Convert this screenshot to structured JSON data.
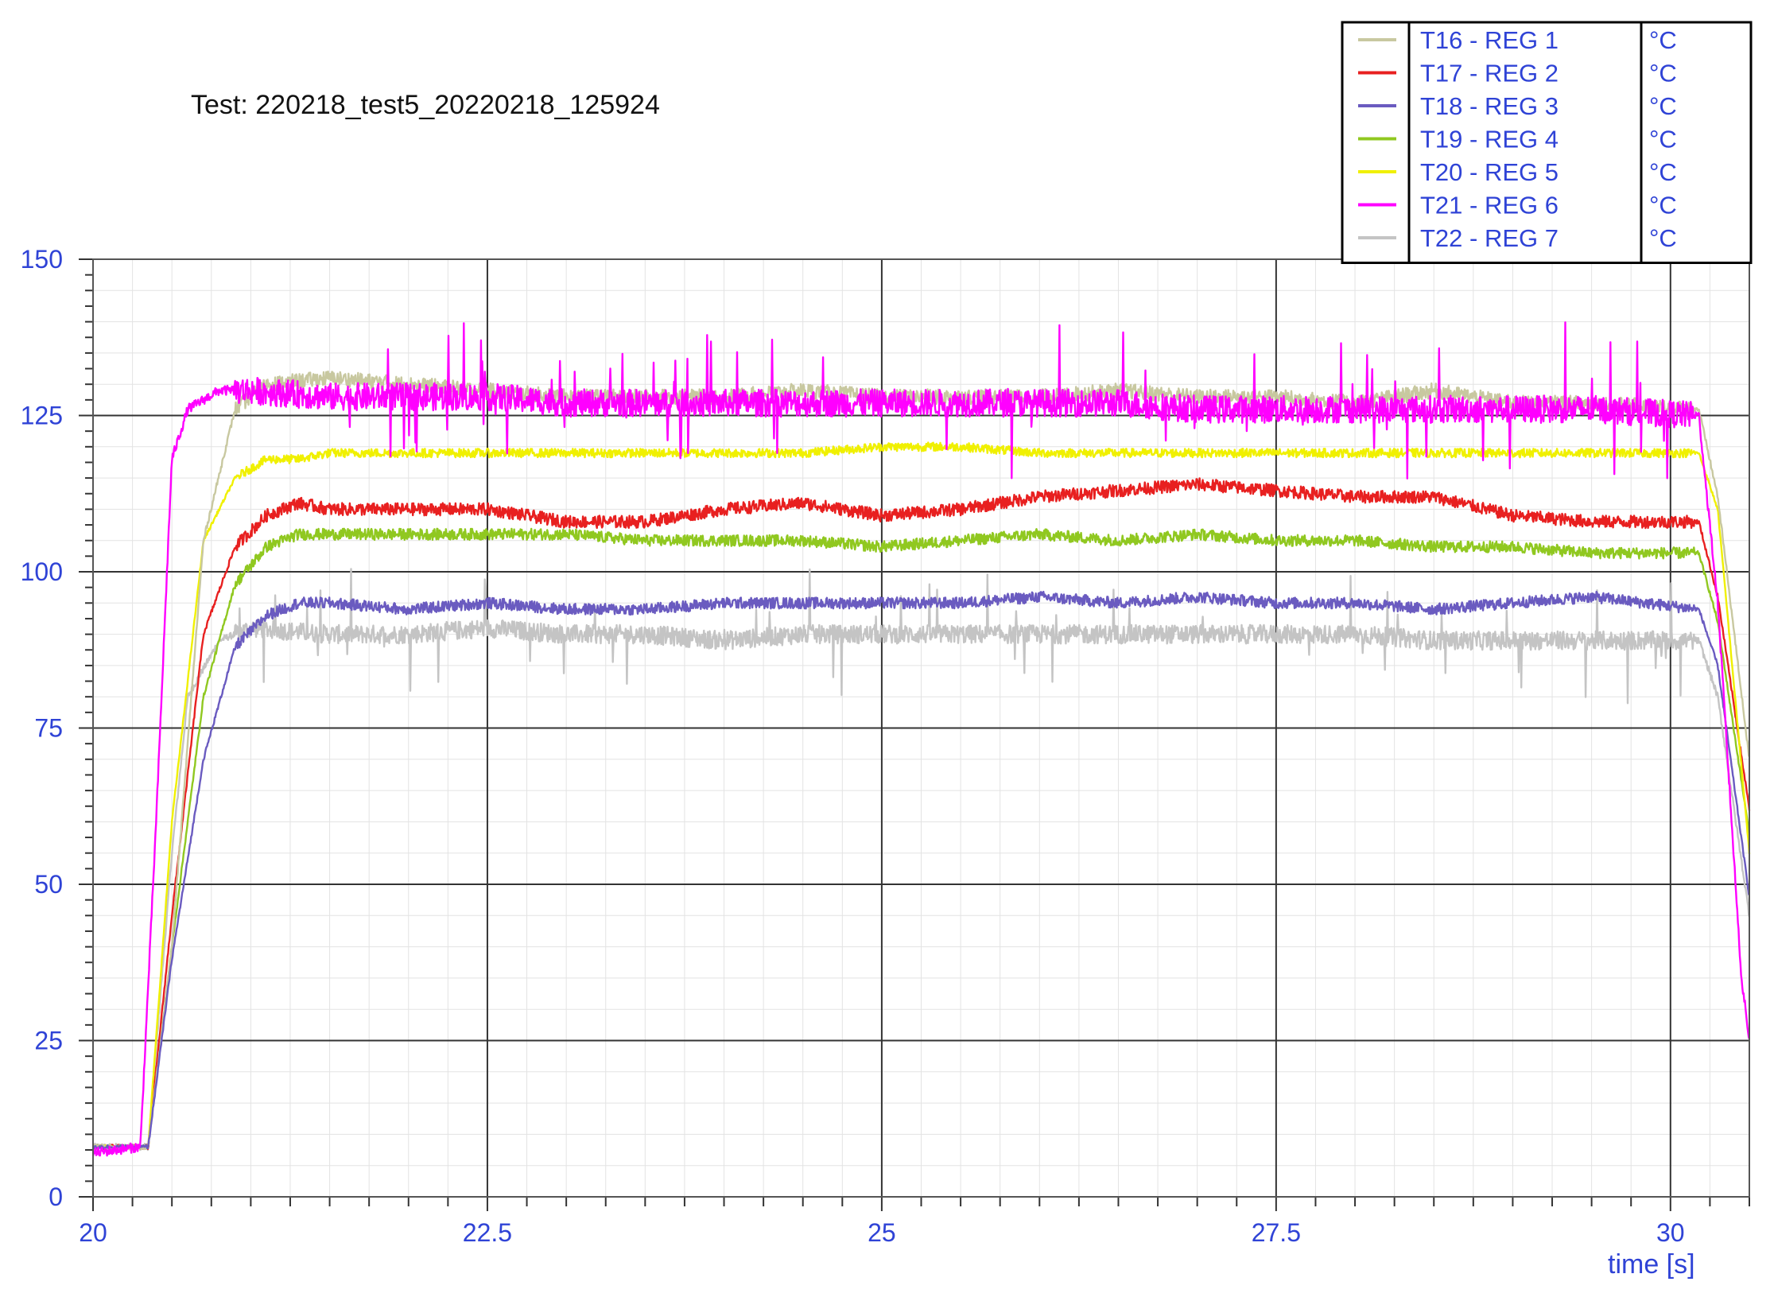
{
  "test_label": "Test:  220218_test5_20220218_125924",
  "chart_data": {
    "type": "line",
    "title": "Test:  220218_test5_20220218_125924",
    "xlabel": "time [s]",
    "ylabel": "",
    "xlim": [
      20,
      30.5
    ],
    "ylim": [
      0,
      150
    ],
    "x_ticks": [
      "20",
      "22.5",
      "25",
      "27.5",
      "30"
    ],
    "x_tick_values": [
      20,
      22.5,
      25,
      27.5,
      30
    ],
    "y_ticks": [
      "0",
      "25",
      "50",
      "75",
      "100",
      "125",
      "150"
    ],
    "y_tick_values": [
      0,
      25,
      50,
      75,
      100,
      125,
      150
    ],
    "grid": true,
    "legend_position": "top-right",
    "series": [
      {
        "name": "T16 - REG 1",
        "unit": "°C",
        "color": "#c8c8a0",
        "noise": 1.2,
        "x": [
          20,
          20.35,
          20.5,
          20.7,
          20.9,
          21.1,
          21.5,
          22,
          22.5,
          23,
          23.5,
          24,
          24.5,
          25,
          25.5,
          26,
          26.5,
          27,
          27.5,
          28,
          28.5,
          29,
          29.5,
          30.18,
          30.3,
          30.5
        ],
        "y": [
          8,
          8,
          40,
          105,
          126,
          130,
          131,
          130,
          129,
          128,
          128,
          128,
          129,
          128,
          128,
          128,
          129,
          128,
          128,
          127,
          129,
          127,
          127,
          126,
          112,
          70
        ]
      },
      {
        "name": "T17 - REG 2",
        "unit": "°C",
        "color": "#e82020",
        "noise": 1.0,
        "x": [
          20,
          20.35,
          20.5,
          20.7,
          20.9,
          21.1,
          21.3,
          21.5,
          22,
          22.5,
          23,
          23.5,
          24,
          24.5,
          25,
          25.5,
          26,
          26.5,
          27,
          27.5,
          28,
          28.5,
          29,
          29.5,
          30.18,
          30.3,
          30.5
        ],
        "y": [
          8,
          8,
          45,
          90,
          104,
          109,
          111,
          110,
          110,
          110,
          108,
          108,
          110,
          111,
          109,
          110,
          112,
          113,
          114,
          113,
          112,
          112,
          109,
          108,
          108,
          96,
          62
        ]
      },
      {
        "name": "T18 - REG 3",
        "unit": "°C",
        "color": "#6a5bc0",
        "noise": 0.9,
        "x": [
          20,
          20.35,
          20.5,
          20.7,
          20.9,
          21.1,
          21.3,
          21.5,
          22,
          22.5,
          23,
          23.5,
          24,
          24.5,
          25,
          25.5,
          26,
          26.5,
          27,
          27.5,
          28,
          28.5,
          29,
          29.5,
          30.18,
          30.3,
          30.5
        ],
        "y": [
          8,
          8,
          38,
          70,
          88,
          93,
          95,
          95,
          94,
          95,
          94,
          94,
          95,
          95,
          95,
          95,
          96,
          95,
          96,
          95,
          95,
          94,
          95,
          96,
          94,
          85,
          48
        ]
      },
      {
        "name": "T19 - REG 4",
        "unit": "°C",
        "color": "#90c820",
        "noise": 0.9,
        "x": [
          20,
          20.35,
          20.5,
          20.7,
          20.9,
          21.1,
          21.3,
          21.5,
          22,
          22.5,
          23,
          23.5,
          24,
          24.5,
          25,
          25.5,
          26,
          26.5,
          27,
          27.5,
          28,
          28.5,
          29,
          29.5,
          30.18,
          30.3,
          30.5
        ],
        "y": [
          8,
          8,
          40,
          80,
          98,
          104,
          106,
          106,
          106,
          106,
          106,
          105,
          105,
          105,
          104,
          105,
          106,
          105,
          106,
          105,
          105,
          104,
          104,
          103,
          103,
          92,
          58
        ]
      },
      {
        "name": "T20 - REG 5",
        "unit": "°C",
        "color": "#f0f000",
        "noise": 0.7,
        "x": [
          20,
          20.35,
          20.5,
          20.7,
          20.9,
          21.1,
          21.3,
          21.5,
          22,
          22.5,
          23,
          23.5,
          24,
          24.5,
          25,
          25.5,
          26,
          26.5,
          27,
          27.5,
          28,
          28.5,
          29,
          29.5,
          30.18,
          30.3,
          30.5
        ],
        "y": [
          8,
          8,
          60,
          105,
          115,
          118,
          118,
          119,
          119,
          119,
          119,
          119,
          119,
          119,
          120,
          120,
          119,
          119,
          119,
          119,
          119,
          119,
          119,
          119,
          119,
          110,
          55
        ]
      },
      {
        "name": "T21 - REG 6",
        "unit": "°C",
        "color": "#ff00ff",
        "noise": 2.2,
        "spikes": 6,
        "x": [
          20,
          20.3,
          20.4,
          20.5,
          20.6,
          20.8,
          21,
          21.5,
          22,
          22.5,
          23,
          23.5,
          24,
          24.5,
          25,
          25.5,
          26,
          26.5,
          27,
          27.5,
          28,
          28.5,
          29,
          29.5,
          30.18,
          30.3,
          30.45,
          30.5
        ],
        "y": [
          7,
          8,
          60,
          118,
          126,
          129,
          129,
          128,
          128,
          128,
          127,
          127,
          127,
          127,
          127,
          127,
          127,
          127,
          126,
          126,
          126,
          126,
          126,
          126,
          125,
          95,
          35,
          25
        ]
      },
      {
        "name": "T22 - REG 7",
        "unit": "°C",
        "color": "#c4c4c4",
        "noise": 1.5,
        "spikes": 5,
        "x": [
          20,
          20.35,
          20.5,
          20.6,
          20.8,
          21,
          21.5,
          22,
          22.5,
          23,
          23.5,
          24,
          24.5,
          25,
          25.5,
          26,
          26.5,
          27,
          27.5,
          28,
          28.5,
          29,
          29.5,
          30.18,
          30.3,
          30.5
        ],
        "y": [
          8,
          8,
          55,
          80,
          89,
          91,
          90,
          90,
          91,
          90,
          90,
          89,
          90,
          90,
          90,
          90,
          90,
          90,
          90,
          90,
          89,
          89,
          89,
          89,
          80,
          45
        ]
      }
    ]
  }
}
